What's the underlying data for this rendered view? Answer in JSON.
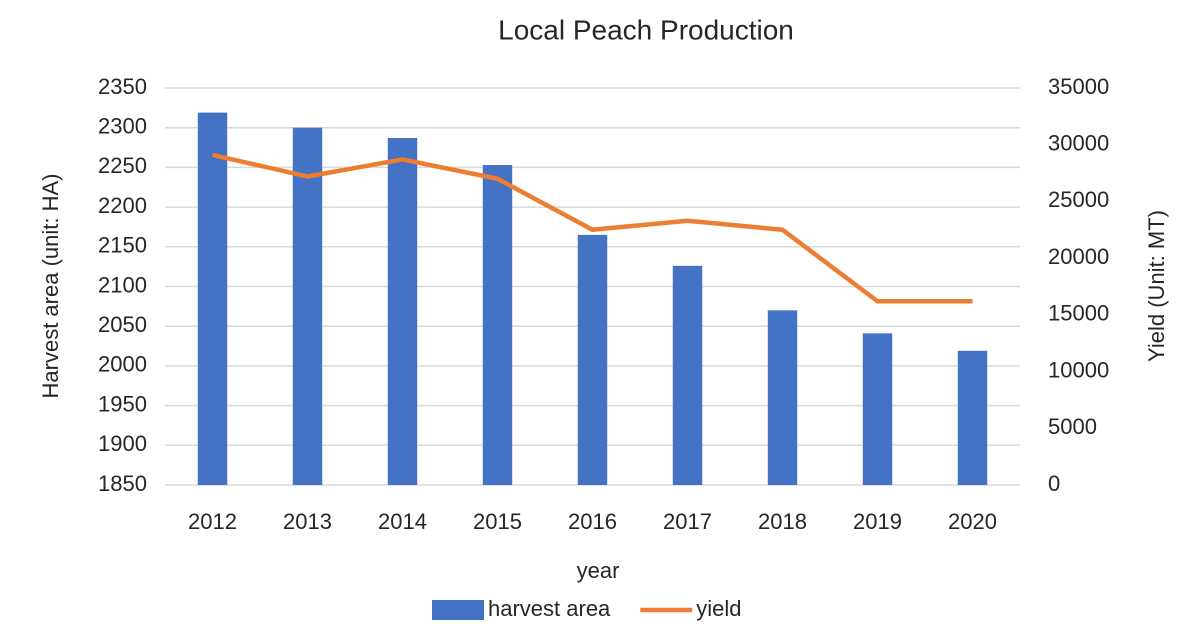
{
  "chart_data": {
    "type": "bar-line",
    "title": "Local Peach Production",
    "x_label": "year",
    "y_label": "Harvest area (unit: HA)",
    "y2_label": "Yield (Unit: MT)",
    "categories": [
      "2012",
      "2013",
      "2014",
      "2015",
      "2016",
      "2017",
      "2018",
      "2019",
      "2020"
    ],
    "series": [
      {
        "name": "harvest area",
        "type": "bar",
        "color": "#4472c4",
        "values": [
          2319,
          2300,
          2287,
          2253,
          2165,
          2126,
          2070,
          2041,
          2019
        ]
      },
      {
        "name": "yield",
        "type": "line",
        "axis": "y2",
        "color": "#ed7d31",
        "values": [
          29100,
          27200,
          28700,
          27000,
          22500,
          23300,
          22500,
          16200,
          16200
        ]
      }
    ],
    "ylim": [
      1850,
      2350
    ],
    "yticks": [
      1850,
      1900,
      1950,
      2000,
      2050,
      2100,
      2150,
      2200,
      2250,
      2300,
      2350
    ],
    "y2lim": [
      0,
      35000
    ],
    "y2ticks": [
      0,
      5000,
      10000,
      15000,
      20000,
      25000,
      30000,
      35000
    ],
    "grid": true,
    "legend": "bottom"
  }
}
